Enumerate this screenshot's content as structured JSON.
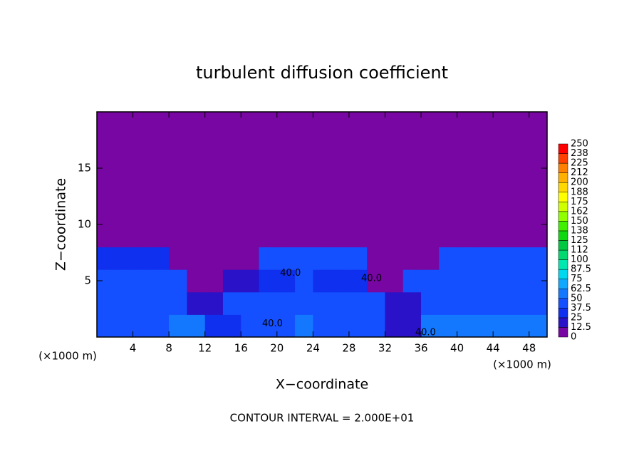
{
  "chart_data": {
    "type": "heatmap",
    "title": "turbulent diffusion coefficient",
    "x_label": "X−coordinate",
    "y_label": "Z−coordinate",
    "x_unit_label": "(×1000 m)",
    "footer": "CONTOUR INTERVAL = 2.000E+01",
    "xlim": [
      0,
      50
    ],
    "ylim": [
      0,
      20
    ],
    "xticks": [
      4,
      8,
      12,
      16,
      20,
      24,
      28,
      32,
      36,
      40,
      44,
      48
    ],
    "yticks": [
      5,
      10,
      15
    ],
    "x": [
      1,
      3,
      5,
      7,
      9,
      11,
      13,
      15,
      17,
      19,
      21,
      23,
      25,
      27,
      29,
      31,
      33,
      35,
      37,
      39,
      41,
      43,
      45,
      47,
      49
    ],
    "y": [
      1,
      3,
      5,
      7,
      9,
      11,
      13,
      15,
      17,
      19
    ],
    "z": [
      [
        45,
        45,
        45,
        45,
        50,
        50,
        30,
        30,
        45,
        45,
        45,
        55,
        40,
        40,
        40,
        40,
        20,
        20,
        50,
        50,
        50,
        50,
        50,
        50,
        50
      ],
      [
        45,
        45,
        45,
        45,
        45,
        20,
        20,
        40,
        40,
        40,
        40,
        45,
        40,
        40,
        40,
        40,
        15,
        15,
        45,
        45,
        45,
        45,
        45,
        45,
        45
      ],
      [
        40,
        40,
        40,
        40,
        40,
        10,
        10,
        20,
        20,
        35,
        30,
        45,
        30,
        35,
        35,
        10,
        10,
        40,
        40,
        40,
        40,
        40,
        40,
        40,
        40
      ],
      [
        35,
        35,
        35,
        35,
        8,
        8,
        8,
        8,
        8,
        40,
        40,
        40,
        40,
        40,
        40,
        8,
        8,
        8,
        8,
        40,
        40,
        40,
        40,
        40,
        40
      ],
      [
        5,
        5,
        5,
        5,
        5,
        5,
        5,
        5,
        5,
        5,
        5,
        5,
        5,
        5,
        5,
        5,
        5,
        5,
        5,
        5,
        5,
        5,
        5,
        5,
        5
      ],
      [
        5,
        5,
        5,
        5,
        5,
        5,
        5,
        5,
        5,
        5,
        5,
        5,
        5,
        5,
        5,
        5,
        5,
        5,
        5,
        5,
        5,
        5,
        5,
        5,
        5
      ],
      [
        5,
        5,
        5,
        5,
        5,
        5,
        5,
        5,
        5,
        5,
        5,
        5,
        5,
        5,
        5,
        5,
        5,
        5,
        5,
        5,
        5,
        5,
        5,
        5,
        5
      ],
      [
        5,
        5,
        5,
        5,
        5,
        5,
        5,
        5,
        5,
        5,
        5,
        5,
        5,
        5,
        5,
        5,
        5,
        5,
        5,
        5,
        5,
        5,
        5,
        5,
        5
      ],
      [
        5,
        5,
        5,
        5,
        5,
        5,
        5,
        5,
        5,
        5,
        5,
        5,
        5,
        5,
        5,
        5,
        5,
        5,
        5,
        5,
        5,
        5,
        5,
        5,
        5
      ],
      [
        5,
        5,
        5,
        5,
        5,
        5,
        5,
        5,
        5,
        5,
        5,
        5,
        5,
        5,
        5,
        5,
        5,
        5,
        5,
        5,
        5,
        5,
        5,
        5,
        5
      ]
    ],
    "levels": [
      0,
      12.5,
      25,
      37.5,
      50,
      62.5,
      75,
      87.5,
      100,
      112,
      125,
      138,
      150,
      162,
      175,
      188,
      200,
      212,
      225,
      238,
      250
    ],
    "colors": [
      "#7806a2",
      "#2a12c8",
      "#1030f0",
      "#1450ff",
      "#1478ff",
      "#10a8ff",
      "#00d8f0",
      "#00e8b0",
      "#00d870",
      "#00c840",
      "#10d810",
      "#40f000",
      "#90ff00",
      "#d0ff00",
      "#ffff00",
      "#ffd800",
      "#ffb000",
      "#ff8000",
      "#ff4000",
      "#ff0000",
      "#f08080"
    ],
    "contour_labels": [
      {
        "value": 40,
        "label": "40.0",
        "x": 21.5,
        "y": 5.3
      },
      {
        "value": 40,
        "label": "40.0",
        "x": 30.5,
        "y": 4.8
      },
      {
        "value": 40,
        "label": "40.0",
        "x": 19.5,
        "y": 0.8
      },
      {
        "value": 40,
        "label": "40.0",
        "x": 36.5,
        "y": 0
      }
    ]
  }
}
